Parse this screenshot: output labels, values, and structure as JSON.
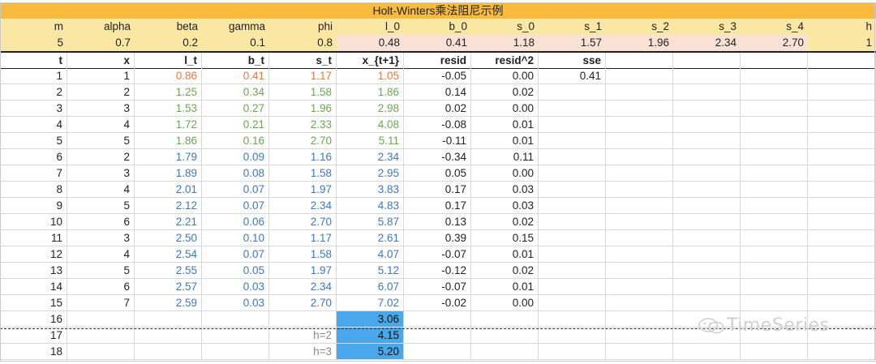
{
  "title": "Holt-Winters乘法阻尼示例",
  "params": {
    "labels": [
      "m",
      "alpha",
      "beta",
      "gamma",
      "phi",
      "l_0",
      "b_0",
      "s_0",
      "s_1",
      "s_2",
      "s_3",
      "s_4",
      "h"
    ],
    "values": [
      "5",
      "0.7",
      "0.2",
      "0.1",
      "0.8",
      "0.48",
      "0.41",
      "1.18",
      "1.57",
      "1.96",
      "2.34",
      "2.70",
      "1"
    ]
  },
  "columns": [
    "t",
    "x",
    "l_t",
    "b_t",
    "s_t",
    "x_{t+1}",
    "resid",
    "resid^2",
    "sse"
  ],
  "rows": [
    {
      "t": "1",
      "x": "1",
      "l": "0.86",
      "b": "0.41",
      "s": "1.17",
      "f": "1.05",
      "r": "-0.05",
      "r2": "0.00",
      "sse": "0.41",
      "color": "orange"
    },
    {
      "t": "2",
      "x": "2",
      "l": "1.25",
      "b": "0.34",
      "s": "1.58",
      "f": "1.86",
      "r": "0.14",
      "r2": "0.02",
      "sse": "",
      "color": "green"
    },
    {
      "t": "3",
      "x": "3",
      "l": "1.53",
      "b": "0.27",
      "s": "1.96",
      "f": "2.98",
      "r": "0.02",
      "r2": "0.00",
      "sse": "",
      "color": "green"
    },
    {
      "t": "4",
      "x": "4",
      "l": "1.72",
      "b": "0.21",
      "s": "2.33",
      "f": "4.08",
      "r": "-0.08",
      "r2": "0.01",
      "sse": "",
      "color": "green"
    },
    {
      "t": "5",
      "x": "5",
      "l": "1.86",
      "b": "0.16",
      "s": "2.70",
      "f": "5.11",
      "r": "-0.11",
      "r2": "0.01",
      "sse": "",
      "color": "green"
    },
    {
      "t": "6",
      "x": "2",
      "l": "1.79",
      "b": "0.09",
      "s": "1.16",
      "f": "2.34",
      "r": "-0.34",
      "r2": "0.11",
      "sse": "",
      "color": "blue"
    },
    {
      "t": "7",
      "x": "3",
      "l": "1.89",
      "b": "0.08",
      "s": "1.58",
      "f": "2.95",
      "r": "0.05",
      "r2": "0.00",
      "sse": "",
      "color": "blue"
    },
    {
      "t": "8",
      "x": "4",
      "l": "2.01",
      "b": "0.07",
      "s": "1.97",
      "f": "3.83",
      "r": "0.17",
      "r2": "0.03",
      "sse": "",
      "color": "blue"
    },
    {
      "t": "9",
      "x": "5",
      "l": "2.12",
      "b": "0.07",
      "s": "2.34",
      "f": "4.83",
      "r": "0.17",
      "r2": "0.03",
      "sse": "",
      "color": "blue"
    },
    {
      "t": "10",
      "x": "6",
      "l": "2.21",
      "b": "0.06",
      "s": "2.70",
      "f": "5.87",
      "r": "0.13",
      "r2": "0.02",
      "sse": "",
      "color": "blue"
    },
    {
      "t": "11",
      "x": "3",
      "l": "2.50",
      "b": "0.10",
      "s": "1.17",
      "f": "2.61",
      "r": "0.39",
      "r2": "0.15",
      "sse": "",
      "color": "blue"
    },
    {
      "t": "12",
      "x": "4",
      "l": "2.54",
      "b": "0.07",
      "s": "1.58",
      "f": "4.07",
      "r": "-0.07",
      "r2": "0.01",
      "sse": "",
      "color": "blue"
    },
    {
      "t": "13",
      "x": "5",
      "l": "2.55",
      "b": "0.05",
      "s": "1.97",
      "f": "5.12",
      "r": "-0.12",
      "r2": "0.02",
      "sse": "",
      "color": "blue"
    },
    {
      "t": "14",
      "x": "6",
      "l": "2.57",
      "b": "0.03",
      "s": "2.34",
      "f": "6.07",
      "r": "-0.07",
      "r2": "0.01",
      "sse": "",
      "color": "blue"
    },
    {
      "t": "15",
      "x": "7",
      "l": "2.59",
      "b": "0.03",
      "s": "2.70",
      "f": "7.02",
      "r": "-0.02",
      "r2": "0.00",
      "sse": "",
      "color": "blue"
    }
  ],
  "forecast": [
    {
      "t": "16",
      "h": "",
      "f": "3.06"
    },
    {
      "t": "17",
      "h": "h=2",
      "f": "4.15"
    },
    {
      "t": "18",
      "h": "h=3",
      "f": "5.20"
    }
  ],
  "watermark": "TimeSeries",
  "colors": {
    "title_bg": "#f7bc3e",
    "param_bg": "#fbe7a4",
    "pink_bg": "#f9e1d6",
    "orange": "#e8793b",
    "green": "#6aa84f",
    "blue": "#3d78c0",
    "forecast_bg": "#4aa8ea"
  }
}
